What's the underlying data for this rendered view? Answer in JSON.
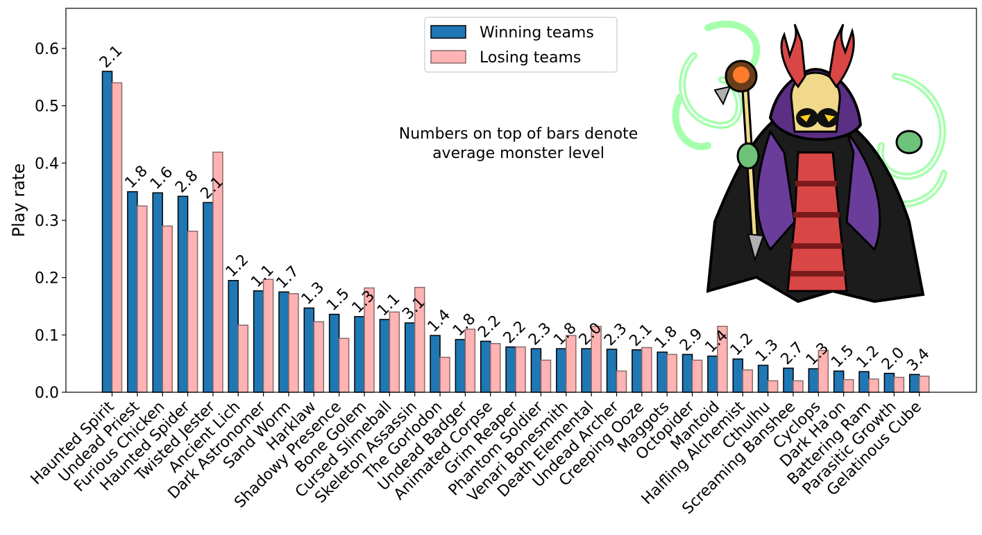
{
  "chart_data": {
    "type": "bar",
    "ylabel": "Play rate",
    "ylim": [
      0,
      0.67
    ],
    "yticks": [
      0.0,
      0.1,
      0.2,
      0.3,
      0.4,
      0.5,
      0.6
    ],
    "legend_position": "top-center",
    "annotation": [
      "Numbers on top of bars denote",
      "average monster level"
    ],
    "categories": [
      "Haunted Spirit",
      "Undead Priest",
      "Furious Chicken",
      "Haunted Spider",
      "Twisted Jester",
      "Ancient Lich",
      "Dark Astronomer",
      "Sand Worm",
      "Harklaw",
      "Shadowy Presence",
      "Bone Golem",
      "Cursed Slimeball",
      "Skeleton Assassin",
      "The Gorlodon",
      "Undead Badger",
      "Animated Corpse",
      "Grim Reaper",
      "Phantom Soldier",
      "Venari Bonesmith",
      "Death Elemental",
      "Undead Archer",
      "Creeping Ooze",
      "Maggots",
      "Octopider",
      "Mantoid",
      "Halfling Alchemist",
      "Cthulhu",
      "Screaming Banshee",
      "Cyclops",
      "Dark Ha'on",
      "Battering Ram",
      "Parasitic Growth",
      "Gelatinous Cube"
    ],
    "series": [
      {
        "name": "Winning teams",
        "color": "#1f77b4",
        "values": [
          0.56,
          0.35,
          0.348,
          0.342,
          0.331,
          0.195,
          0.177,
          0.175,
          0.147,
          0.136,
          0.132,
          0.127,
          0.121,
          0.099,
          0.092,
          0.089,
          0.079,
          0.076,
          0.076,
          0.076,
          0.075,
          0.074,
          0.07,
          0.066,
          0.063,
          0.058,
          0.047,
          0.042,
          0.041,
          0.037,
          0.036,
          0.033,
          0.031
        ]
      },
      {
        "name": "Losing teams",
        "color": "#ffb3b3",
        "values": [
          0.54,
          0.325,
          0.29,
          0.281,
          0.419,
          0.117,
          0.197,
          0.172,
          0.123,
          0.094,
          0.182,
          0.14,
          0.183,
          0.061,
          0.11,
          0.085,
          0.079,
          0.056,
          0.099,
          0.115,
          0.037,
          0.078,
          0.066,
          0.056,
          0.115,
          0.039,
          0.02,
          0.02,
          0.073,
          0.022,
          0.023,
          0.026,
          0.028
        ]
      }
    ],
    "bar_labels": [
      "2.1",
      "1.8",
      "1.6",
      "2.8",
      "2.1",
      "1.2",
      "1.1",
      "1.7",
      "1.3",
      "1.5",
      "1.3",
      "1.1",
      "3.1",
      "1.4",
      "1.8",
      "2.2",
      "2.2",
      "2.3",
      "1.8",
      "2.0",
      "2.3",
      "2.1",
      "1.8",
      "2.9",
      "1.4",
      "1.2",
      "1.3",
      "2.7",
      "1.3",
      "1.5",
      "1.2",
      "2.0",
      "3.4"
    ]
  },
  "illustration": {
    "subject": "skeleton-lich-mage-icon",
    "glow_color": "#5dff6a"
  }
}
